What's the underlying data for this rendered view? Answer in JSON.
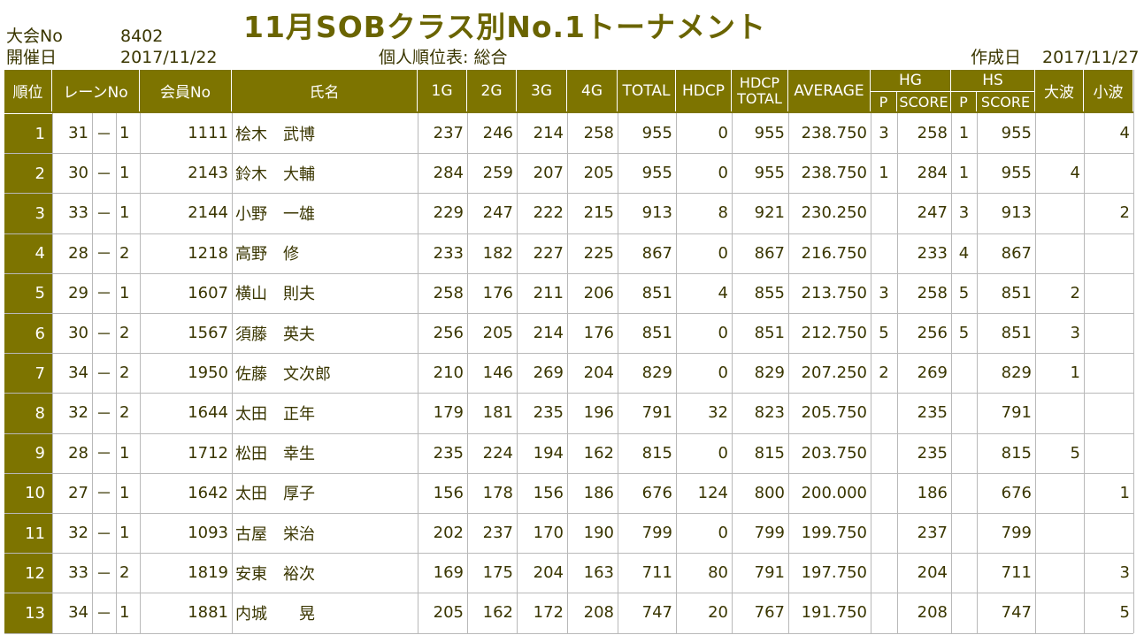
{
  "meta": {
    "tournament_no_label": "大会No",
    "tournament_no": "8402",
    "date_label": "開催日",
    "date": "2017/11/22",
    "sheet_title": "個人順位表: 総合",
    "created_label": "作成日",
    "created_date": "2017/11/27",
    "title": "11月SOBクラス別No.1トーナメント"
  },
  "headers": {
    "rank": "順位",
    "lane": "レーンNo",
    "member": "会員No",
    "name": "氏名",
    "g1": "1G",
    "g2": "2G",
    "g3": "3G",
    "g4": "4G",
    "total": "TOTAL",
    "hdcp": "HDCP",
    "hdcp_total_1": "HDCP",
    "hdcp_total_2": "TOTAL",
    "average": "AVERAGE",
    "hg": "HG",
    "hs": "HS",
    "p": "P",
    "score": "SCORE",
    "big": "大波",
    "small": "小波"
  },
  "colors": {
    "header_bg": "#7d7400",
    "text": "#3a3600"
  },
  "rows": [
    {
      "rank": "1",
      "lane": "31",
      "dash": "－",
      "sub": "1",
      "member": "1111",
      "name": "桧木　武博",
      "g1": "237",
      "g2": "246",
      "g3": "214",
      "g4": "258",
      "total": "955",
      "hdcp": "0",
      "hdcp_total": "955",
      "average": "238.750",
      "hg_p": "3",
      "hg_score": "258",
      "hs_p": "1",
      "hs_score": "955",
      "big": "",
      "small": "4"
    },
    {
      "rank": "2",
      "lane": "30",
      "dash": "－",
      "sub": "1",
      "member": "2143",
      "name": "鈴木　大輔",
      "g1": "284",
      "g2": "259",
      "g3": "207",
      "g4": "205",
      "total": "955",
      "hdcp": "0",
      "hdcp_total": "955",
      "average": "238.750",
      "hg_p": "1",
      "hg_score": "284",
      "hs_p": "1",
      "hs_score": "955",
      "big": "4",
      "small": ""
    },
    {
      "rank": "3",
      "lane": "33",
      "dash": "－",
      "sub": "1",
      "member": "2144",
      "name": "小野　一雄",
      "g1": "229",
      "g2": "247",
      "g3": "222",
      "g4": "215",
      "total": "913",
      "hdcp": "8",
      "hdcp_total": "921",
      "average": "230.250",
      "hg_p": "",
      "hg_score": "247",
      "hs_p": "3",
      "hs_score": "913",
      "big": "",
      "small": "2"
    },
    {
      "rank": "4",
      "lane": "28",
      "dash": "－",
      "sub": "2",
      "member": "1218",
      "name": "高野　修",
      "g1": "233",
      "g2": "182",
      "g3": "227",
      "g4": "225",
      "total": "867",
      "hdcp": "0",
      "hdcp_total": "867",
      "average": "216.750",
      "hg_p": "",
      "hg_score": "233",
      "hs_p": "4",
      "hs_score": "867",
      "big": "",
      "small": ""
    },
    {
      "rank": "5",
      "lane": "29",
      "dash": "－",
      "sub": "1",
      "member": "1607",
      "name": "横山　則夫",
      "g1": "258",
      "g2": "176",
      "g3": "211",
      "g4": "206",
      "total": "851",
      "hdcp": "4",
      "hdcp_total": "855",
      "average": "213.750",
      "hg_p": "3",
      "hg_score": "258",
      "hs_p": "5",
      "hs_score": "851",
      "big": "2",
      "small": ""
    },
    {
      "rank": "6",
      "lane": "30",
      "dash": "－",
      "sub": "2",
      "member": "1567",
      "name": "須藤　英夫",
      "g1": "256",
      "g2": "205",
      "g3": "214",
      "g4": "176",
      "total": "851",
      "hdcp": "0",
      "hdcp_total": "851",
      "average": "212.750",
      "hg_p": "5",
      "hg_score": "256",
      "hs_p": "5",
      "hs_score": "851",
      "big": "3",
      "small": ""
    },
    {
      "rank": "7",
      "lane": "34",
      "dash": "－",
      "sub": "2",
      "member": "1950",
      "name": "佐藤　文次郎",
      "g1": "210",
      "g2": "146",
      "g3": "269",
      "g4": "204",
      "total": "829",
      "hdcp": "0",
      "hdcp_total": "829",
      "average": "207.250",
      "hg_p": "2",
      "hg_score": "269",
      "hs_p": "",
      "hs_score": "829",
      "big": "1",
      "small": ""
    },
    {
      "rank": "8",
      "lane": "32",
      "dash": "－",
      "sub": "2",
      "member": "1644",
      "name": "太田　正年",
      "g1": "179",
      "g2": "181",
      "g3": "235",
      "g4": "196",
      "total": "791",
      "hdcp": "32",
      "hdcp_total": "823",
      "average": "205.750",
      "hg_p": "",
      "hg_score": "235",
      "hs_p": "",
      "hs_score": "791",
      "big": "",
      "small": ""
    },
    {
      "rank": "9",
      "lane": "28",
      "dash": "－",
      "sub": "1",
      "member": "1712",
      "name": "松田　幸生",
      "g1": "235",
      "g2": "224",
      "g3": "194",
      "g4": "162",
      "total": "815",
      "hdcp": "0",
      "hdcp_total": "815",
      "average": "203.750",
      "hg_p": "",
      "hg_score": "235",
      "hs_p": "",
      "hs_score": "815",
      "big": "5",
      "small": ""
    },
    {
      "rank": "10",
      "lane": "27",
      "dash": "－",
      "sub": "1",
      "member": "1642",
      "name": "太田　厚子",
      "g1": "156",
      "g2": "178",
      "g3": "156",
      "g4": "186",
      "total": "676",
      "hdcp": "124",
      "hdcp_total": "800",
      "average": "200.000",
      "hg_p": "",
      "hg_score": "186",
      "hs_p": "",
      "hs_score": "676",
      "big": "",
      "small": "1"
    },
    {
      "rank": "11",
      "lane": "32",
      "dash": "－",
      "sub": "1",
      "member": "1093",
      "name": "古屋　栄治",
      "g1": "202",
      "g2": "237",
      "g3": "170",
      "g4": "190",
      "total": "799",
      "hdcp": "0",
      "hdcp_total": "799",
      "average": "199.750",
      "hg_p": "",
      "hg_score": "237",
      "hs_p": "",
      "hs_score": "799",
      "big": "",
      "small": ""
    },
    {
      "rank": "12",
      "lane": "33",
      "dash": "－",
      "sub": "2",
      "member": "1819",
      "name": "安東　裕次",
      "g1": "169",
      "g2": "175",
      "g3": "204",
      "g4": "163",
      "total": "711",
      "hdcp": "80",
      "hdcp_total": "791",
      "average": "197.750",
      "hg_p": "",
      "hg_score": "204",
      "hs_p": "",
      "hs_score": "711",
      "big": "",
      "small": "3"
    },
    {
      "rank": "13",
      "lane": "34",
      "dash": "－",
      "sub": "1",
      "member": "1881",
      "name": "内城　　晃",
      "g1": "205",
      "g2": "162",
      "g3": "172",
      "g4": "208",
      "total": "747",
      "hdcp": "20",
      "hdcp_total": "767",
      "average": "191.750",
      "hg_p": "",
      "hg_score": "208",
      "hs_p": "",
      "hs_score": "747",
      "big": "",
      "small": "5"
    }
  ]
}
